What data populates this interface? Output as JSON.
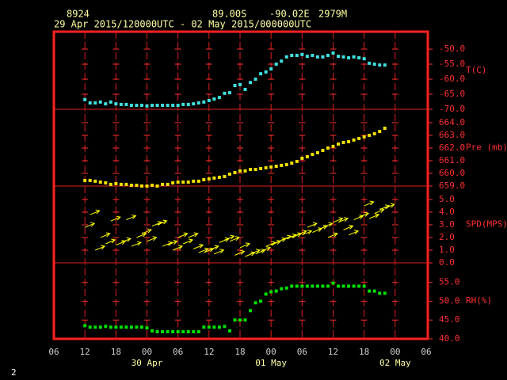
{
  "header": {
    "station": "8924",
    "lat": "89.00S",
    "lon": "-90.02E",
    "elev": "2979M",
    "period": "29 Apr 2015/120000UTC - 02 May 2015/000000UTC"
  },
  "footer": "2",
  "chart_data": [
    {
      "type": "scatter",
      "ylabel": "T(C)",
      "color": "#40e0e0",
      "x": [
        6,
        7,
        8,
        9,
        10,
        11,
        12,
        13,
        14,
        15,
        16,
        17,
        18,
        19,
        20,
        21,
        22,
        23,
        24,
        25,
        26,
        27,
        28,
        29,
        30,
        31,
        32,
        33,
        34,
        35,
        36,
        37,
        38,
        39,
        40,
        41,
        42,
        43,
        44,
        45,
        46,
        47,
        48,
        49,
        50,
        51,
        52,
        53,
        54,
        55,
        56,
        57,
        58,
        59,
        60,
        61,
        62,
        63,
        64
      ],
      "values": [
        -66.8,
        -67.9,
        -67.9,
        -67.6,
        -68.2,
        -67.6,
        -68.2,
        -68.4,
        -68.4,
        -68.7,
        -68.7,
        -68.7,
        -68.9,
        -68.7,
        -68.7,
        -68.7,
        -68.7,
        -68.7,
        -68.7,
        -68.4,
        -68.4,
        -68.2,
        -67.9,
        -67.6,
        -67.1,
        -66.6,
        -66.1,
        -64.7,
        -64.5,
        -62.1,
        -61.8,
        -63.4,
        -61.1,
        -60.0,
        -58.2,
        -57.6,
        -56.6,
        -55.0,
        -54.0,
        -52.6,
        -52.1,
        -52.1,
        -51.8,
        -52.4,
        -52.1,
        -52.6,
        -52.6,
        -52.1,
        -51.3,
        -52.4,
        -52.6,
        -52.9,
        -52.6,
        -52.9,
        -53.2,
        -54.7,
        -55.0,
        -55.3,
        -55.3
      ],
      "xlim": [
        0,
        72
      ],
      "ylim": [
        -70,
        -44.2
      ],
      "yticks": [
        {
          "value": -70,
          "label": "-70.0"
        },
        {
          "value": -65,
          "label": "-65.0"
        },
        {
          "value": -60,
          "label": "-60.0"
        },
        {
          "value": -55,
          "label": "-55.0"
        },
        {
          "value": -50,
          "label": "-50.0"
        }
      ]
    },
    {
      "type": "scatter",
      "ylabel": "Pre (mb)",
      "color": "#f0e000",
      "x": [
        6,
        7,
        8,
        9,
        10,
        11,
        12,
        13,
        14,
        15,
        16,
        17,
        18,
        19,
        20,
        21,
        22,
        23,
        24,
        25,
        26,
        27,
        28,
        29,
        30,
        31,
        32,
        33,
        34,
        35,
        36,
        37,
        38,
        39,
        40,
        41,
        42,
        43,
        44,
        45,
        46,
        47,
        48,
        49,
        50,
        51,
        52,
        53,
        54,
        55,
        56,
        57,
        58,
        59,
        60,
        61,
        62,
        63,
        64
      ],
      "values": [
        659.44,
        659.44,
        659.38,
        659.31,
        659.25,
        659.13,
        659.19,
        659.13,
        659.13,
        659.06,
        659.06,
        659.0,
        659.0,
        659.06,
        659.0,
        659.13,
        659.13,
        659.25,
        659.31,
        659.31,
        659.31,
        659.38,
        659.38,
        659.5,
        659.56,
        659.63,
        659.69,
        659.75,
        659.94,
        660.06,
        660.19,
        660.19,
        660.31,
        660.31,
        660.38,
        660.44,
        660.5,
        660.56,
        660.63,
        660.69,
        660.81,
        660.94,
        661.19,
        661.31,
        661.5,
        661.63,
        661.81,
        662.0,
        662.13,
        662.31,
        662.44,
        662.5,
        662.63,
        662.75,
        662.88,
        663.0,
        663.13,
        663.31,
        663.56
      ],
      "xlim": [
        0,
        72
      ],
      "ylim": [
        659,
        665.06
      ],
      "yticks": [
        {
          "value": 659,
          "label": "659.0"
        },
        {
          "value": 660,
          "label": "660.0"
        },
        {
          "value": 661,
          "label": "661.0"
        },
        {
          "value": 662,
          "label": "662.0"
        },
        {
          "value": 663,
          "label": "663.0"
        },
        {
          "value": 664,
          "label": "664.0"
        }
      ]
    },
    {
      "type": "vector",
      "ylabel": "SPD(MPS)",
      "color": "#ffff00",
      "x": [
        6,
        7,
        8,
        9,
        10,
        11,
        12,
        13,
        14,
        15,
        16,
        17,
        18,
        19,
        20,
        21,
        22,
        23,
        24,
        25,
        26,
        27,
        28,
        29,
        30,
        31,
        32,
        33,
        34,
        35,
        36,
        37,
        38,
        39,
        40,
        41,
        42,
        43,
        44,
        45,
        46,
        47,
        48,
        49,
        50,
        51,
        52,
        53,
        54,
        55,
        56,
        57,
        58,
        59,
        60,
        61,
        62,
        63,
        64
      ],
      "values": [
        2.8,
        3.8,
        1.0,
        2.0,
        1.5,
        3.3,
        1.4,
        1.6,
        3.4,
        1.3,
        2.0,
        2.3,
        1.7,
        2.9,
        3.0,
        1.3,
        1.4,
        1.0,
        2.0,
        1.5,
        2.0,
        1.1,
        0.8,
        0.8,
        1.0,
        0.7,
        1.6,
        1.8,
        1.7,
        0.6,
        1.2,
        0.5,
        0.7,
        0.7,
        0.9,
        1.3,
        1.4,
        1.6,
        1.8,
        1.9,
        2.0,
        2.2,
        2.2,
        2.8,
        2.4,
        2.6,
        2.8,
        2.0,
        3.2,
        3.2,
        2.6,
        2.2,
        3.4,
        3.6,
        4.5,
        3.5,
        3.9,
        4.2,
        4.3
      ],
      "xlim": [
        0,
        72
      ],
      "ylim": [
        0,
        6.06
      ],
      "yticks": [
        {
          "value": 0,
          "label": "0.0"
        },
        {
          "value": 1,
          "label": "1.0"
        },
        {
          "value": 2,
          "label": "2.0"
        },
        {
          "value": 3,
          "label": "3.0"
        },
        {
          "value": 4,
          "label": "4.0"
        },
        {
          "value": 5,
          "label": "5.0"
        }
      ]
    },
    {
      "type": "scatter",
      "ylabel": "RH(%)",
      "color": "#00e000",
      "x": [
        6,
        7,
        8,
        9,
        10,
        11,
        12,
        13,
        14,
        15,
        16,
        17,
        18,
        19,
        20,
        21,
        22,
        23,
        24,
        25,
        26,
        27,
        28,
        29,
        30,
        31,
        32,
        33,
        34,
        35,
        36,
        37,
        38,
        39,
        40,
        41,
        42,
        43,
        44,
        45,
        46,
        47,
        48,
        49,
        50,
        51,
        52,
        53,
        54,
        55,
        56,
        57,
        58,
        59,
        60,
        61,
        62,
        63,
        64
      ],
      "values": [
        43.5,
        43.1,
        43.1,
        43.1,
        43.3,
        43.1,
        43.1,
        43.1,
        43.1,
        43.1,
        43.1,
        43.1,
        42.9,
        42.1,
        41.9,
        41.9,
        41.9,
        41.9,
        41.9,
        41.9,
        41.9,
        41.9,
        41.9,
        43.1,
        43.1,
        43.1,
        43.1,
        43.3,
        42.1,
        45.0,
        45.0,
        45.0,
        47.5,
        49.6,
        50.0,
        51.9,
        52.5,
        52.7,
        53.3,
        53.5,
        54.0,
        54.0,
        54.0,
        54.0,
        54.0,
        54.0,
        54.0,
        54.0,
        54.8,
        54.0,
        54.0,
        54.0,
        54.0,
        54.0,
        54.0,
        52.7,
        52.7,
        52.1,
        52.1
      ],
      "xlim": [
        0,
        72
      ],
      "ylim": [
        40,
        60.2
      ],
      "yticks": [
        {
          "value": 40,
          "label": "40.0"
        },
        {
          "value": 45,
          "label": "45.0"
        },
        {
          "value": 50,
          "label": "50.0"
        },
        {
          "value": 55,
          "label": "55.0"
        }
      ],
      "xticks": [
        {
          "value": 0,
          "label": "06"
        },
        {
          "value": 6,
          "label": "12"
        },
        {
          "value": 12,
          "label": "18"
        },
        {
          "value": 18,
          "label": "00"
        },
        {
          "value": 24,
          "label": "06"
        },
        {
          "value": 30,
          "label": "12"
        },
        {
          "value": 36,
          "label": "18"
        },
        {
          "value": 42,
          "label": "00"
        },
        {
          "value": 48,
          "label": "06"
        },
        {
          "value": 54,
          "label": "12"
        },
        {
          "value": 60,
          "label": "18"
        },
        {
          "value": 66,
          "label": "00"
        },
        {
          "value": 72,
          "label": "06"
        }
      ],
      "date_labels": [
        {
          "value": 18,
          "label": "30 Apr"
        },
        {
          "value": 42,
          "label": "01 May"
        },
        {
          "value": 66,
          "label": "02 May"
        }
      ]
    }
  ]
}
